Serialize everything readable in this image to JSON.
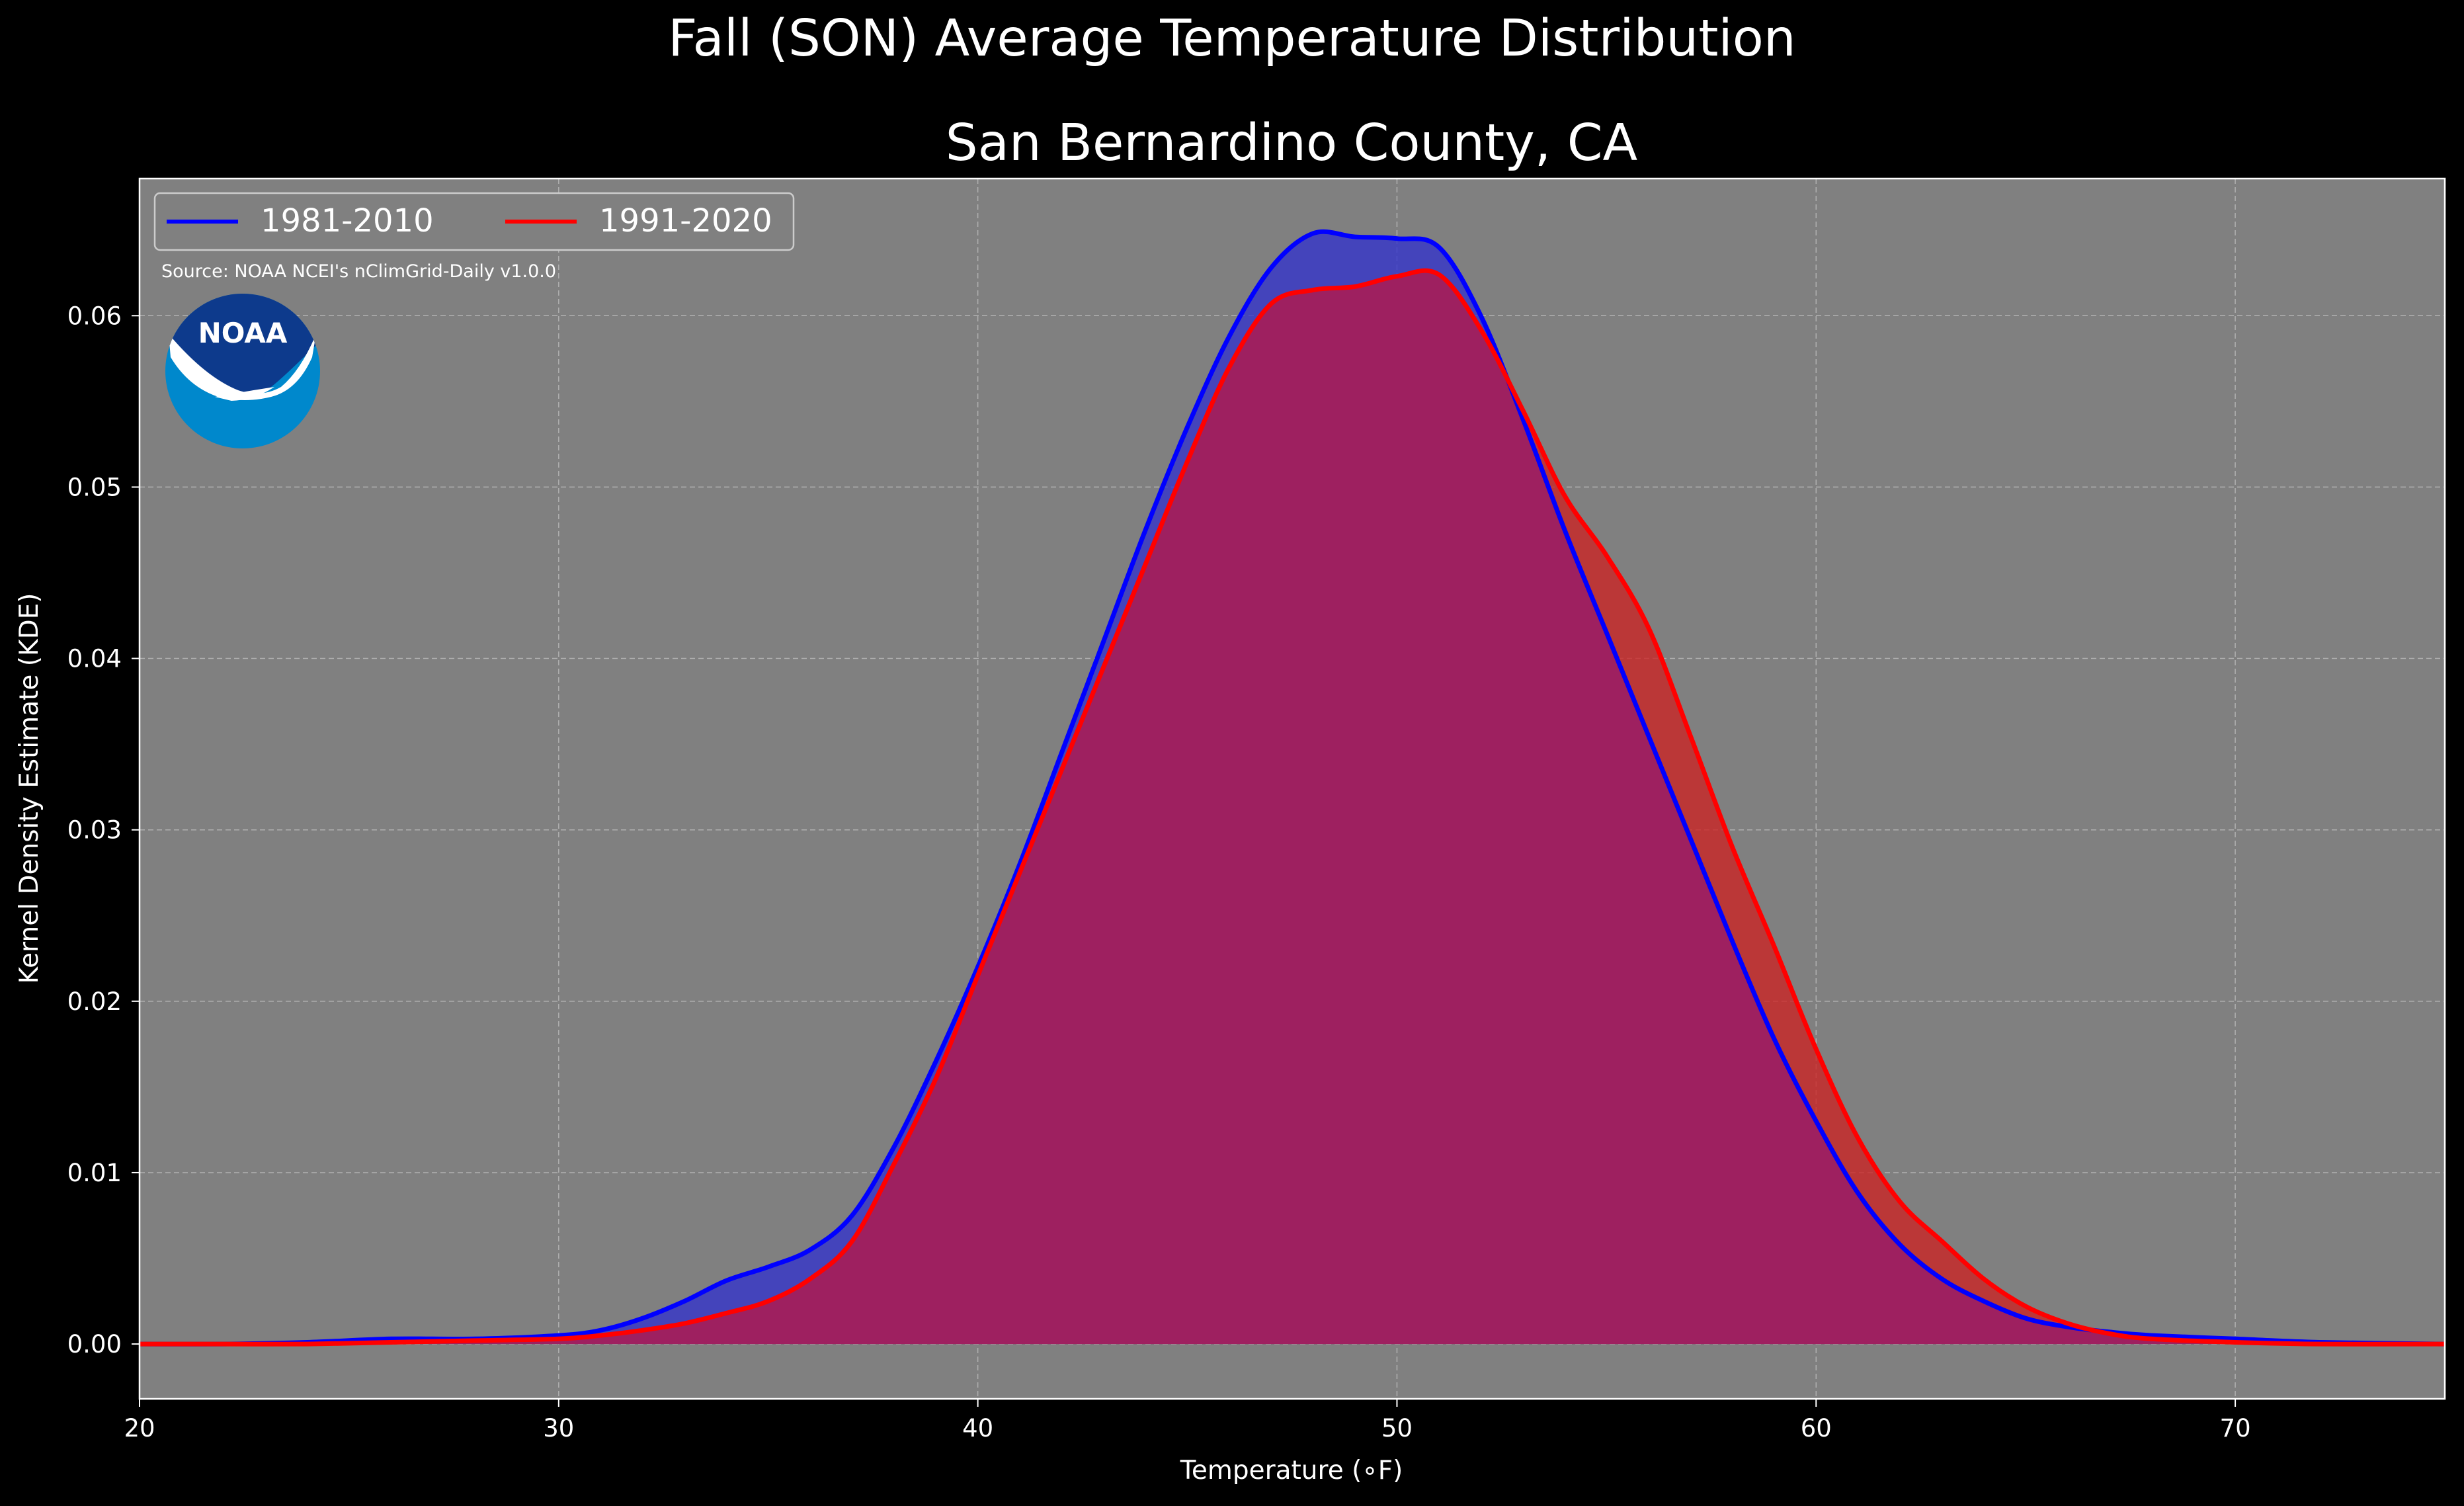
{
  "suptitle": "Fall (SON) Average Temperature Distribution",
  "chart_data": {
    "type": "area",
    "title": "San Bernardino County, CA",
    "xlabel": "Temperature ($^\\circ$F)",
    "xlabel_display": "Temperature (∘F)",
    "ylabel": "Kernel Density Estimate (KDE)",
    "xlim": [
      20,
      75
    ],
    "ylim": [
      -0.0032,
      0.068
    ],
    "xticks": [
      20,
      30,
      40,
      50,
      60,
      70
    ],
    "xtick_labels": [
      "20",
      "30",
      "40",
      "50",
      "60",
      "70"
    ],
    "yticks": [
      0.0,
      0.01,
      0.02,
      0.03,
      0.04,
      0.05,
      0.06
    ],
    "ytick_labels": [
      "0.00",
      "0.01",
      "0.02",
      "0.03",
      "0.04",
      "0.05",
      "0.06"
    ],
    "grid": true,
    "legend_position": "top-left",
    "x": [
      20,
      22,
      24,
      26,
      28,
      30,
      31,
      32,
      33,
      34,
      35,
      36,
      37,
      38,
      39,
      40,
      41,
      42,
      43,
      44,
      45,
      46,
      47,
      48,
      49,
      50,
      51,
      52,
      53,
      54,
      55,
      56,
      57,
      58,
      59,
      60,
      61,
      62,
      63,
      64,
      65,
      66,
      67,
      68,
      70,
      72,
      75
    ],
    "series": [
      {
        "name": "1981-2010",
        "color": "#0000ff",
        "fill": "#3333cc",
        "values": [
          0.0,
          0.0,
          0.0001,
          0.0003,
          0.0003,
          0.0005,
          0.0008,
          0.0015,
          0.0025,
          0.0037,
          0.0045,
          0.0055,
          0.0075,
          0.0115,
          0.0165,
          0.022,
          0.028,
          0.0345,
          0.041,
          0.0475,
          0.0535,
          0.0588,
          0.0628,
          0.0648,
          0.0646,
          0.0645,
          0.064,
          0.06,
          0.054,
          0.0475,
          0.0415,
          0.0355,
          0.0295,
          0.0235,
          0.0178,
          0.013,
          0.0088,
          0.0058,
          0.0038,
          0.0025,
          0.0015,
          0.001,
          0.0007,
          0.0005,
          0.0003,
          0.0001,
          0.0
        ]
      },
      {
        "name": "1991-2020",
        "color": "#ff0000",
        "fill": "#cc2222",
        "values": [
          0.0,
          0.0,
          0.0,
          0.0001,
          0.0002,
          0.0003,
          0.0005,
          0.0008,
          0.0012,
          0.0018,
          0.0025,
          0.0038,
          0.006,
          0.0105,
          0.0155,
          0.0215,
          0.0275,
          0.0335,
          0.0395,
          0.0455,
          0.0515,
          0.057,
          0.0607,
          0.0615,
          0.0617,
          0.0623,
          0.0624,
          0.0592,
          0.0545,
          0.0495,
          0.046,
          0.0418,
          0.0355,
          0.029,
          0.0232,
          0.0172,
          0.012,
          0.0083,
          0.006,
          0.0038,
          0.0022,
          0.0012,
          0.0006,
          0.0003,
          0.0001,
          0.0,
          0.0
        ]
      }
    ],
    "annotation": "Source: NOAA NCEI's nClimGrid-Daily v1.0.0",
    "logo_text": "NOAA",
    "colors": {
      "figure_bg": "#000000",
      "axes_bg": "#808080",
      "overlap_fill": "#9e2060",
      "logo_dark": "#0d3a8c",
      "logo_light": "#0088cc"
    }
  }
}
